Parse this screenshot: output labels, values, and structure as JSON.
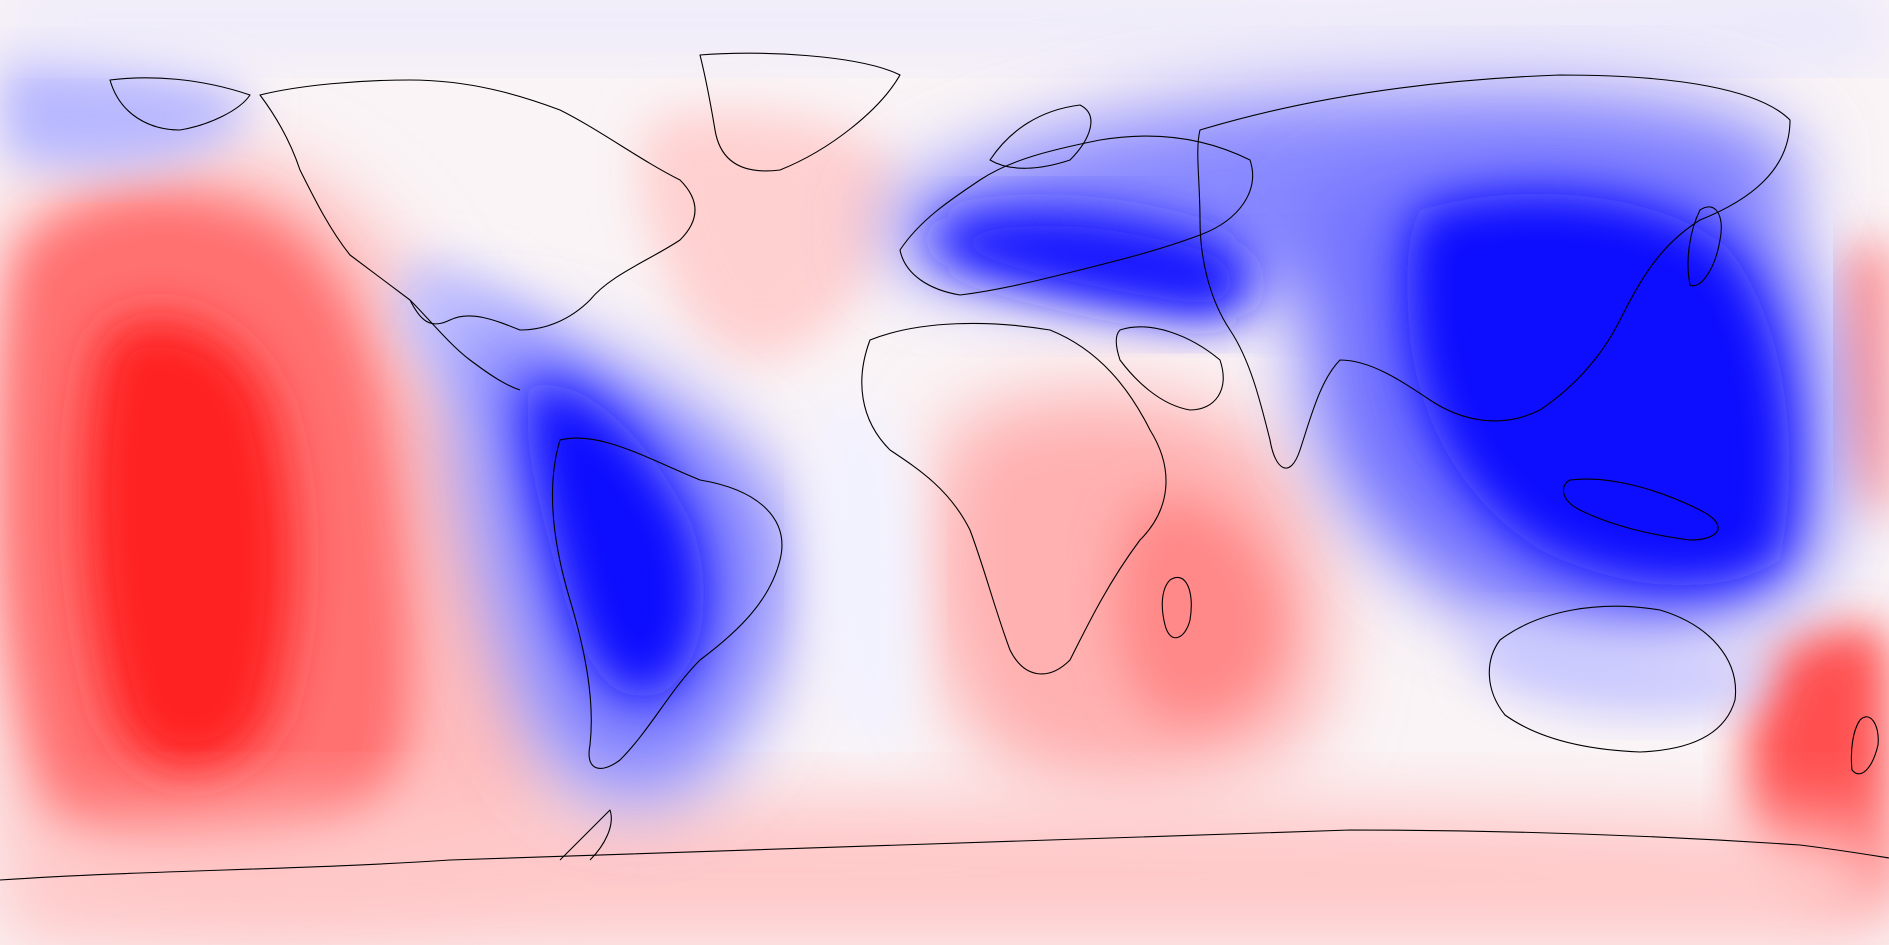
{
  "map": {
    "projection": "equirectangular",
    "field_type": "diverging-anomaly",
    "colors": {
      "strong_positive": "#ff1010",
      "positive": "#ff9a9a",
      "weak_positive": "#ffe0e0",
      "neutral": "#f6f6ff",
      "weak_negative": "#c8c8ff",
      "negative": "#6a6aff",
      "strong_negative": "#0a0aff",
      "coastline": "#000000"
    },
    "features": [
      {
        "name": "pacific-positive-anomaly",
        "sign": "positive",
        "strength": 1.0,
        "lon": -145,
        "lat": -8
      },
      {
        "name": "south-america-negative-anomaly",
        "sign": "negative",
        "strength": 1.0,
        "lon": -65,
        "lat": -15
      },
      {
        "name": "eurasia-negative-anomaly",
        "sign": "negative",
        "strength": 0.95,
        "lon": 40,
        "lat": 41
      },
      {
        "name": "east-asia-negative-anomaly",
        "sign": "negative",
        "strength": 1.0,
        "lon": 125,
        "lat": 18
      },
      {
        "name": "north-atlantic-positive-anomaly",
        "sign": "positive",
        "strength": 0.3,
        "lon": -30,
        "lat": 42
      },
      {
        "name": "indian-ocean-positive-anomaly",
        "sign": "positive",
        "strength": 0.55,
        "lon": 60,
        "lat": -30
      },
      {
        "name": "southwest-pacific-positive-anomaly",
        "sign": "positive",
        "strength": 0.85,
        "lon": 178,
        "lat": -45
      },
      {
        "name": "antarctic-positive-anomaly",
        "sign": "positive",
        "strength": 0.3,
        "lon": 0,
        "lat": -75
      }
    ]
  }
}
